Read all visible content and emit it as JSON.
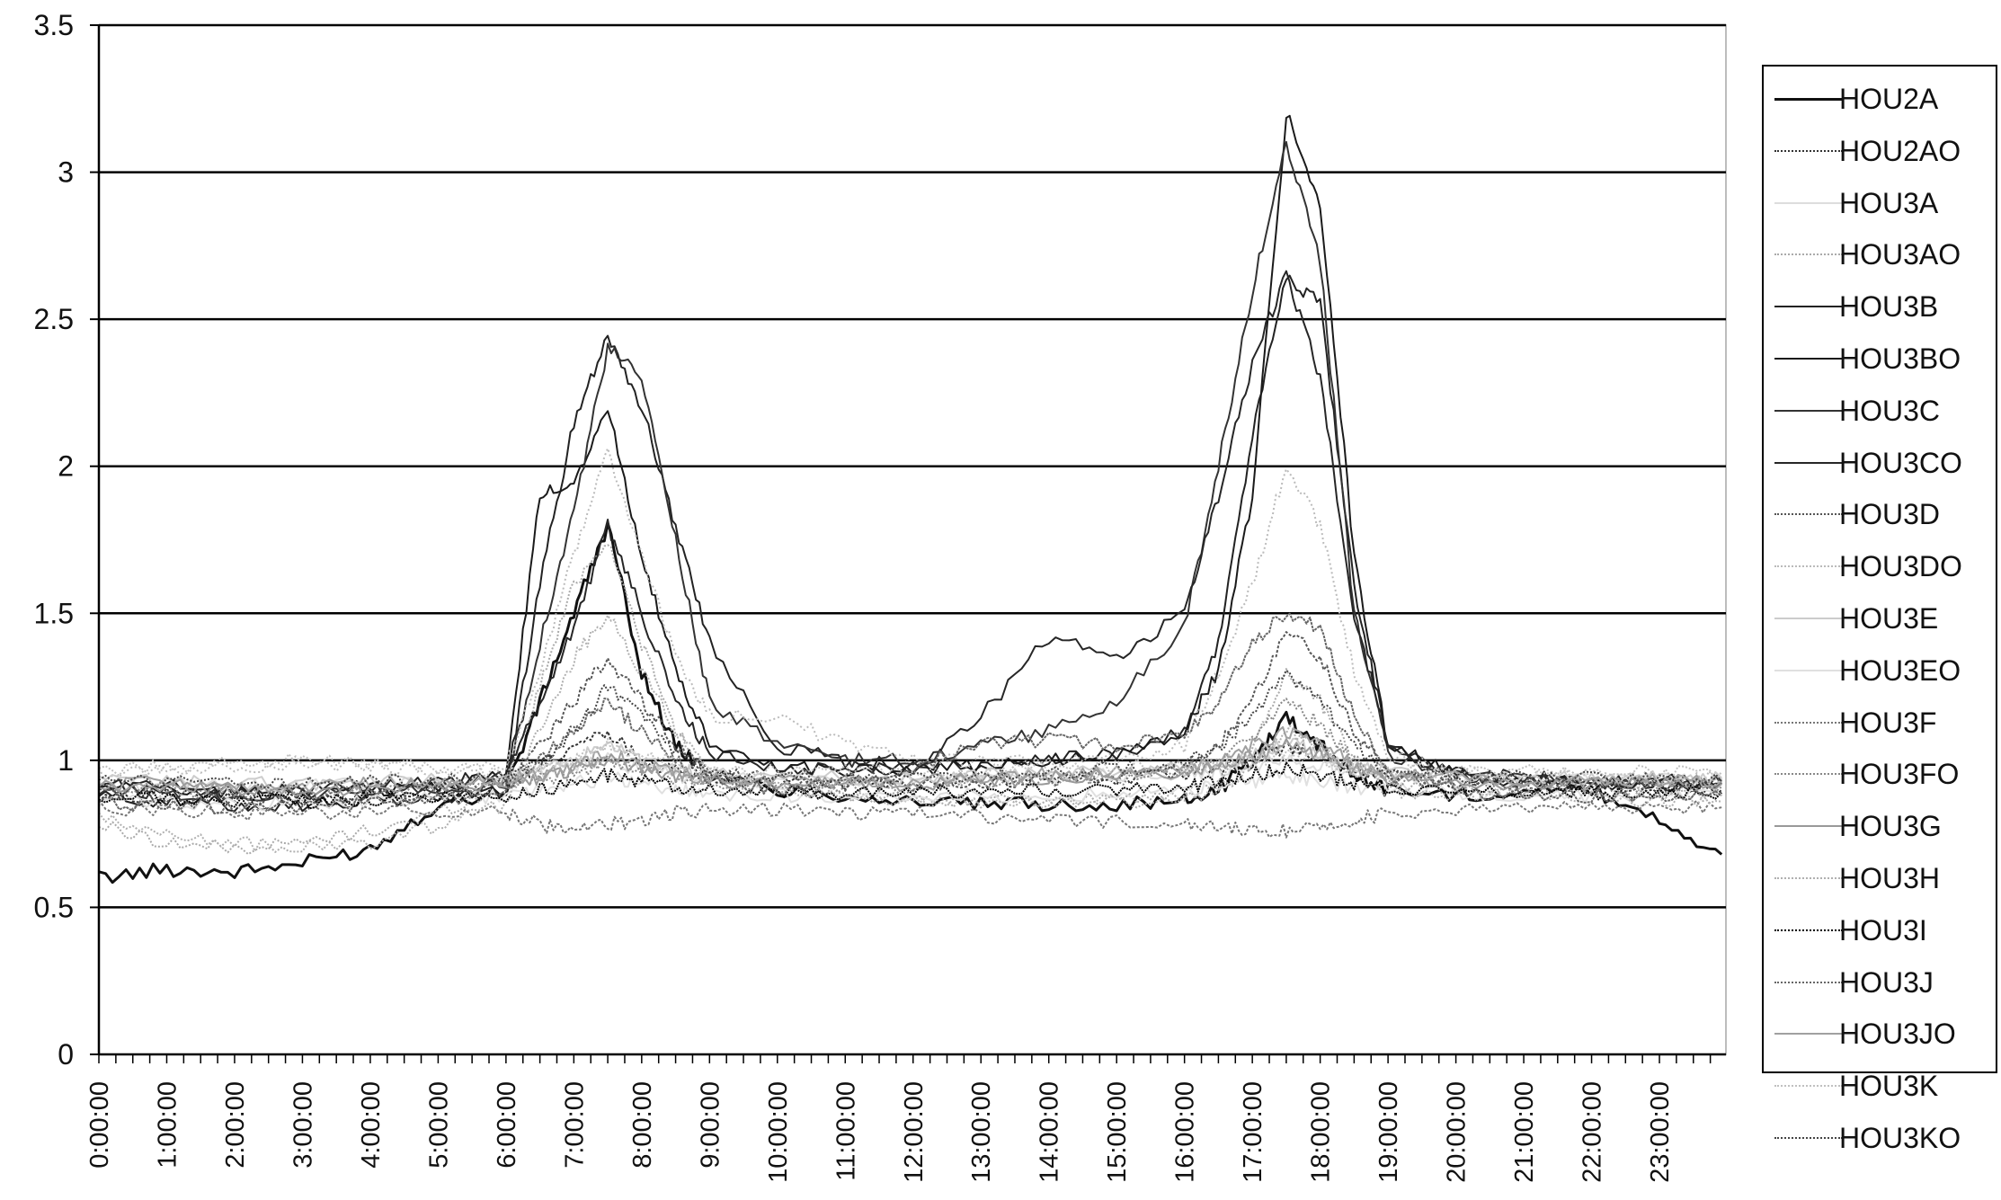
{
  "chart_data": {
    "type": "line",
    "title": "",
    "xlabel": "",
    "ylabel": "",
    "ylim": [
      0,
      3.5
    ],
    "yticks": [
      0,
      0.5,
      1,
      1.5,
      2,
      2.5,
      3,
      3.5
    ],
    "ytick_labels": [
      "0",
      "0.5",
      "1",
      "1.5",
      "2",
      "2.5",
      "3",
      "3.5"
    ],
    "xlim_hours": [
      0,
      23.98
    ],
    "xtick_labels": [
      "0:00:00",
      "1:00:00",
      "2:00:00",
      "3:00:00",
      "4:00:00",
      "5:00:00",
      "6:00:00",
      "7:00:00",
      "8:00:00",
      "9:00:00",
      "10:00:00",
      "11:00:00",
      "12:00:00",
      "13:00:00",
      "14:00:00",
      "15:00:00",
      "16:00:00",
      "17:00:00",
      "18:00:00",
      "19:00:00",
      "20:00:00",
      "21:00:00",
      "22:00:00",
      "23:00:00"
    ],
    "grid": "horizontal",
    "legend_position": "right",
    "x": [
      "0:00:00",
      "1:00:00",
      "2:00:00",
      "3:00:00",
      "4:00:00",
      "5:00:00",
      "6:00:00",
      "6:30:00",
      "7:00:00",
      "7:30:00",
      "8:00:00",
      "8:30:00",
      "9:00:00",
      "10:00:00",
      "11:00:00",
      "12:00:00",
      "13:00:00",
      "14:00:00",
      "15:00:00",
      "16:00:00",
      "16:30:00",
      "17:00:00",
      "17:30:00",
      "18:00:00",
      "18:30:00",
      "19:00:00",
      "20:00:00",
      "21:00:00",
      "22:00:00",
      "23:00:00",
      "23:55:00"
    ],
    "series": [
      {
        "name": "HOU2A",
        "color": "#111111",
        "dash": "",
        "width": 3,
        "values": [
          0.6,
          0.63,
          0.62,
          0.65,
          0.7,
          0.85,
          0.9,
          1.2,
          1.5,
          1.8,
          1.3,
          1.05,
          0.95,
          0.9,
          0.88,
          0.86,
          0.85,
          0.85,
          0.85,
          0.86,
          0.9,
          1.0,
          1.15,
          1.05,
          0.95,
          0.9,
          0.88,
          0.9,
          0.9,
          0.8,
          0.68
        ]
      },
      {
        "name": "HOU2AO",
        "color": "#333333",
        "dash": "3,2",
        "width": 2,
        "values": [
          0.88,
          0.88,
          0.87,
          0.87,
          0.88,
          0.9,
          0.92,
          0.98,
          1.05,
          1.1,
          1.0,
          0.96,
          0.94,
          0.92,
          0.92,
          0.92,
          0.93,
          0.93,
          0.94,
          0.95,
          0.97,
          1.0,
          1.05,
          1.02,
          0.97,
          0.94,
          0.92,
          0.92,
          0.92,
          0.9,
          0.9
        ]
      },
      {
        "name": "HOU3A",
        "color": "#dddddd",
        "dash": "",
        "width": 2,
        "values": [
          0.92,
          0.92,
          0.91,
          0.91,
          0.92,
          0.93,
          0.94,
          0.96,
          0.98,
          1.0,
          0.97,
          0.95,
          0.94,
          0.93,
          0.93,
          0.93,
          0.94,
          0.94,
          0.95,
          0.95,
          0.96,
          0.98,
          1.0,
          0.98,
          0.96,
          0.95,
          0.94,
          0.93,
          0.93,
          0.93,
          0.93
        ]
      },
      {
        "name": "HOU3AO",
        "color": "#aaaaaa",
        "dash": "2,2",
        "width": 2,
        "values": [
          0.78,
          0.72,
          0.7,
          0.72,
          0.76,
          0.82,
          0.92,
          1.25,
          1.6,
          1.75,
          1.4,
          1.1,
          0.95,
          0.9,
          0.88,
          0.87,
          0.86,
          0.86,
          0.87,
          0.88,
          0.92,
          1.05,
          1.3,
          1.2,
          1.0,
          0.92,
          0.9,
          0.9,
          0.9,
          0.88,
          0.88
        ]
      },
      {
        "name": "HOU3B",
        "color": "#222222",
        "dash": "",
        "width": 2,
        "values": [
          0.88,
          0.86,
          0.85,
          0.85,
          0.86,
          0.87,
          0.9,
          1.6,
          2.15,
          2.45,
          2.2,
          1.8,
          1.4,
          1.05,
          1.0,
          0.98,
          0.98,
          1.0,
          1.02,
          1.1,
          1.4,
          2.1,
          2.65,
          2.55,
          1.6,
          1.05,
          0.95,
          0.93,
          0.92,
          0.92,
          0.92
        ]
      },
      {
        "name": "HOU3BO",
        "color": "#1a1a1a",
        "dash": "",
        "width": 2,
        "values": [
          0.9,
          0.9,
          0.89,
          0.89,
          0.9,
          0.91,
          0.95,
          1.9,
          1.95,
          2.2,
          1.7,
          1.3,
          1.05,
          0.98,
          0.97,
          0.97,
          0.98,
          1.0,
          1.02,
          1.1,
          1.3,
          1.9,
          3.2,
          2.9,
          1.7,
          1.05,
          0.95,
          0.93,
          0.92,
          0.92,
          0.92
        ]
      },
      {
        "name": "HOU3C",
        "color": "#333333",
        "dash": "",
        "width": 2,
        "values": [
          0.9,
          0.89,
          0.88,
          0.88,
          0.89,
          0.9,
          0.92,
          1.4,
          1.85,
          2.4,
          2.3,
          1.75,
          1.2,
          1.05,
          1.0,
          1.0,
          1.05,
          1.1,
          1.2,
          1.45,
          2.0,
          2.6,
          3.1,
          2.7,
          1.5,
          1.02,
          0.95,
          0.93,
          0.92,
          0.92,
          0.92
        ]
      },
      {
        "name": "HOU3CO",
        "color": "#262626",
        "dash": "",
        "width": 2,
        "values": [
          0.92,
          0.91,
          0.9,
          0.9,
          0.91,
          0.92,
          0.95,
          1.2,
          1.45,
          1.8,
          1.5,
          1.2,
          1.02,
          0.97,
          0.97,
          0.98,
          1.15,
          1.42,
          1.35,
          1.5,
          1.9,
          2.35,
          2.65,
          2.3,
          1.5,
          1.05,
          0.96,
          0.94,
          0.93,
          0.93,
          0.93
        ]
      },
      {
        "name": "HOU3D",
        "color": "#555555",
        "dash": "3,2",
        "width": 2,
        "values": [
          0.9,
          0.88,
          0.87,
          0.87,
          0.88,
          0.89,
          0.92,
          1.05,
          1.2,
          1.35,
          1.2,
          1.05,
          0.96,
          0.93,
          0.92,
          0.92,
          0.93,
          0.94,
          0.95,
          0.98,
          1.05,
          1.2,
          1.45,
          1.35,
          1.1,
          0.96,
          0.93,
          0.92,
          0.92,
          0.92,
          0.92
        ]
      },
      {
        "name": "HOU3DO",
        "color": "#bbbbbb",
        "dash": "2,3",
        "width": 2,
        "values": [
          0.95,
          0.97,
          0.98,
          0.99,
          0.98,
          0.96,
          0.98,
          1.3,
          1.7,
          2.05,
          1.7,
          1.35,
          1.15,
          1.15,
          1.05,
          1.0,
          1.0,
          1.0,
          1.0,
          1.05,
          1.3,
          1.6,
          2.0,
          1.8,
          1.3,
          1.02,
          0.96,
          0.95,
          0.95,
          0.94,
          0.94
        ]
      },
      {
        "name": "HOU3E",
        "color": "#cccccc",
        "dash": "",
        "width": 2,
        "values": [
          0.93,
          0.93,
          0.92,
          0.92,
          0.93,
          0.93,
          0.94,
          0.97,
          1.0,
          1.05,
          1.0,
          0.97,
          0.95,
          0.94,
          0.94,
          0.94,
          0.95,
          0.95,
          0.96,
          0.97,
          0.99,
          1.02,
          1.06,
          1.03,
          0.98,
          0.96,
          0.95,
          0.94,
          0.94,
          0.94,
          0.94
        ]
      },
      {
        "name": "HOU3EO",
        "color": "#e0e0e0",
        "dash": "",
        "width": 2,
        "values": [
          0.86,
          0.86,
          0.85,
          0.85,
          0.86,
          0.87,
          0.88,
          0.9,
          0.92,
          0.94,
          0.92,
          0.9,
          0.89,
          0.88,
          0.88,
          0.88,
          0.88,
          0.88,
          0.89,
          0.9,
          0.91,
          0.93,
          0.95,
          0.93,
          0.91,
          0.9,
          0.89,
          0.88,
          0.88,
          0.88,
          0.88
        ]
      },
      {
        "name": "HOU3F",
        "color": "#777777",
        "dash": "3,2",
        "width": 2,
        "values": [
          0.84,
          0.83,
          0.82,
          0.82,
          0.82,
          0.83,
          0.82,
          0.78,
          0.76,
          0.78,
          0.8,
          0.82,
          0.83,
          0.83,
          0.82,
          0.82,
          0.81,
          0.8,
          0.79,
          0.78,
          0.77,
          0.76,
          0.76,
          0.78,
          0.8,
          0.82,
          0.83,
          0.84,
          0.84,
          0.84,
          0.84
        ]
      },
      {
        "name": "HOU3FO",
        "color": "#888888",
        "dash": "2,2",
        "width": 2,
        "values": [
          0.9,
          0.9,
          0.89,
          0.89,
          0.9,
          0.9,
          0.91,
          0.93,
          0.96,
          1.0,
          0.97,
          0.94,
          0.92,
          0.91,
          0.91,
          0.91,
          0.92,
          0.93,
          0.94,
          0.96,
          1.0,
          1.08,
          1.2,
          1.12,
          1.0,
          0.94,
          0.92,
          0.91,
          0.91,
          0.91,
          0.91
        ]
      },
      {
        "name": "HOU3G",
        "color": "#999999",
        "dash": "",
        "width": 2,
        "values": [
          0.91,
          0.9,
          0.9,
          0.9,
          0.9,
          0.91,
          0.92,
          0.94,
          0.97,
          1.0,
          0.98,
          0.95,
          0.93,
          0.92,
          0.92,
          0.92,
          0.93,
          0.94,
          0.95,
          0.96,
          0.98,
          1.01,
          1.05,
          1.02,
          0.97,
          0.94,
          0.93,
          0.92,
          0.92,
          0.92,
          0.92
        ]
      },
      {
        "name": "HOU3H",
        "color": "#b0b0b0",
        "dash": "2,2",
        "width": 2,
        "values": [
          0.8,
          0.75,
          0.72,
          0.7,
          0.72,
          0.78,
          0.85,
          1.1,
          1.35,
          1.5,
          1.3,
          1.1,
          0.95,
          0.9,
          0.88,
          0.87,
          0.86,
          0.86,
          0.86,
          0.87,
          0.9,
          0.98,
          1.1,
          1.05,
          0.95,
          0.9,
          0.88,
          0.88,
          0.88,
          0.86,
          0.86
        ]
      },
      {
        "name": "HOU3I",
        "color": "#000000",
        "dash": "2,1",
        "width": 2,
        "values": [
          0.87,
          0.87,
          0.86,
          0.86,
          0.87,
          0.87,
          0.88,
          0.9,
          0.92,
          0.95,
          0.93,
          0.91,
          0.9,
          0.89,
          0.89,
          0.89,
          0.9,
          0.9,
          0.9,
          0.91,
          0.93,
          0.95,
          0.97,
          0.95,
          0.92,
          0.9,
          0.89,
          0.89,
          0.89,
          0.89,
          0.89
        ]
      },
      {
        "name": "HOU3J",
        "color": "#666666",
        "dash": "3,1",
        "width": 2,
        "values": [
          0.85,
          0.85,
          0.84,
          0.84,
          0.85,
          0.86,
          0.9,
          1.0,
          1.1,
          1.2,
          1.1,
          1.0,
          0.93,
          0.9,
          0.92,
          0.98,
          1.05,
          1.07,
          1.05,
          1.1,
          1.2,
          1.4,
          1.5,
          1.45,
          1.15,
          0.95,
          0.9,
          0.88,
          0.88,
          0.88,
          0.88
        ]
      },
      {
        "name": "HOU3JO",
        "color": "#a0a0a0",
        "dash": "",
        "width": 2,
        "values": [
          0.92,
          0.92,
          0.91,
          0.91,
          0.92,
          0.92,
          0.93,
          0.95,
          0.98,
          1.02,
          0.99,
          0.96,
          0.94,
          0.93,
          0.93,
          0.93,
          0.94,
          0.95,
          0.96,
          0.97,
          1.0,
          1.05,
          1.1,
          1.05,
          0.99,
          0.95,
          0.94,
          0.93,
          0.93,
          0.93,
          0.93
        ]
      },
      {
        "name": "HOU3K",
        "color": "#c0c0c0",
        "dash": "2,2",
        "width": 2,
        "values": [
          0.96,
          0.98,
          0.99,
          1.0,
          0.99,
          0.97,
          0.96,
          0.98,
          1.0,
          1.05,
          1.02,
          0.99,
          0.97,
          0.96,
          0.96,
          0.96,
          0.97,
          0.97,
          0.98,
          0.98,
          0.99,
          1.0,
          1.02,
          1.0,
          0.98,
          0.97,
          0.96,
          0.96,
          0.96,
          0.96,
          0.96
        ]
      },
      {
        "name": "HOU3KO",
        "color": "#444444",
        "dash": "2,2",
        "width": 2,
        "values": [
          0.93,
          0.93,
          0.92,
          0.92,
          0.93,
          0.93,
          0.94,
          1.0,
          1.1,
          1.25,
          1.15,
          1.02,
          0.96,
          0.94,
          0.94,
          0.94,
          0.95,
          0.96,
          0.97,
          0.99,
          1.05,
          1.15,
          1.3,
          1.2,
          1.05,
          0.96,
          0.94,
          0.94,
          0.94,
          0.93,
          0.93
        ]
      }
    ]
  }
}
